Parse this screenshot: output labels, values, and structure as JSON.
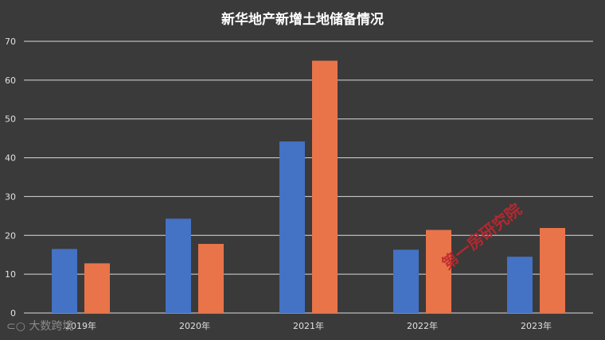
{
  "chart_data": {
    "type": "bar",
    "title": "新华地产新增土地储备情况",
    "categories": [
      "2019年",
      "2020年",
      "2021年",
      "2022年",
      "2023年"
    ],
    "series": [
      {
        "color": "#4472c4",
        "values": [
          16.5,
          24.3,
          44.2,
          16.3,
          14.5
        ]
      },
      {
        "color": "#e9744a",
        "values": [
          12.8,
          17.8,
          65.0,
          21.4,
          21.9
        ]
      }
    ],
    "ylim": [
      0,
      70
    ],
    "yticks": [
      0,
      10,
      20,
      30,
      40,
      50,
      60,
      70
    ],
    "grid": true,
    "legend": "none"
  },
  "watermarks": {
    "main": "第一房研究院",
    "logo": "大数跨境"
  }
}
